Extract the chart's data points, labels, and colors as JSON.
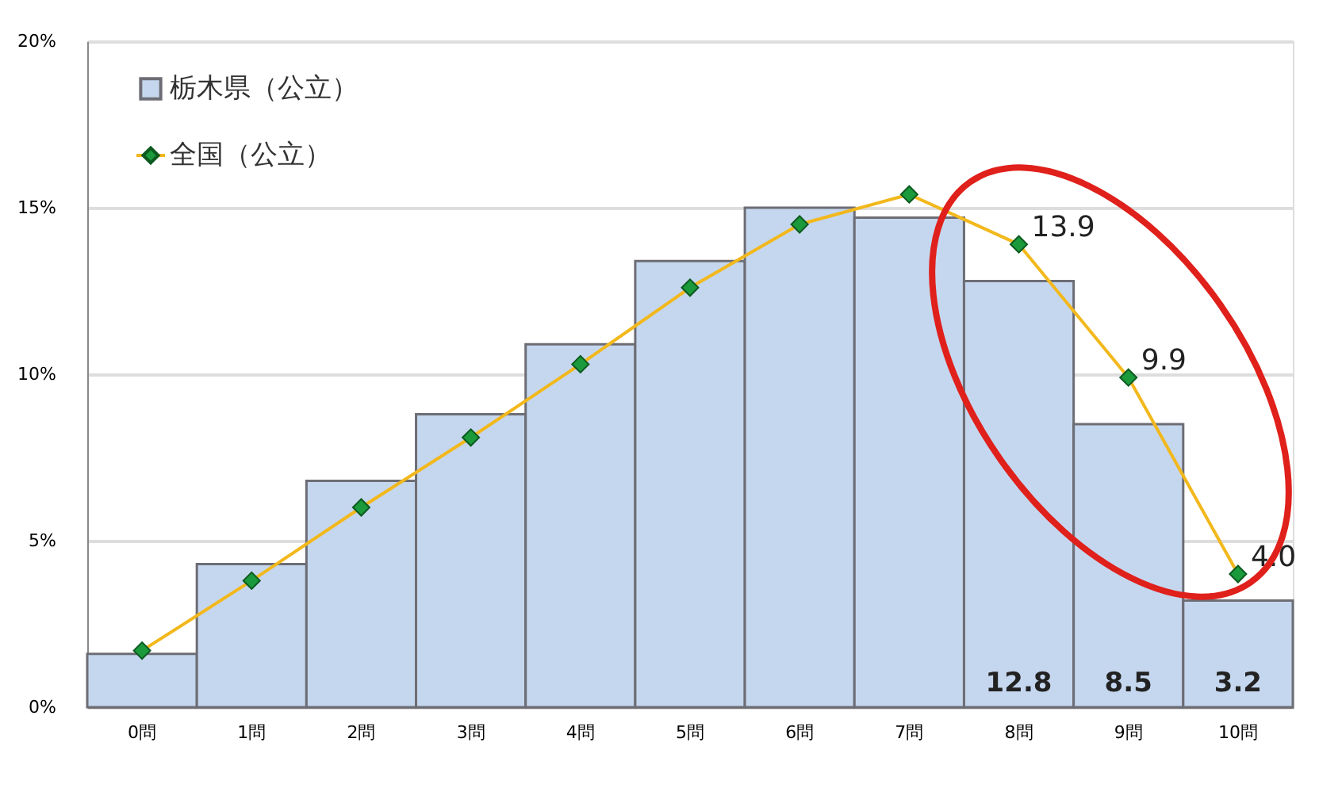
{
  "chart_data": {
    "type": "bar",
    "categories": [
      "0問",
      "1問",
      "2問",
      "3問",
      "4問",
      "5問",
      "6問",
      "7問",
      "8問",
      "9問",
      "10問"
    ],
    "series": [
      {
        "name": "栃木県（公立）",
        "color": "#c5d7ee",
        "values": [
          1.6,
          4.3,
          6.8,
          8.8,
          10.9,
          13.4,
          15.0,
          14.7,
          12.8,
          8.5,
          3.2
        ],
        "value_labels": [
          null,
          null,
          null,
          null,
          null,
          null,
          null,
          null,
          "12.8",
          "8.5",
          "3.2"
        ]
      },
      {
        "name": "全国（公立）",
        "type": "line",
        "color": "#f2b81c",
        "marker": "diamond",
        "values": [
          1.7,
          3.8,
          6.0,
          8.1,
          10.3,
          12.6,
          14.5,
          15.4,
          13.9,
          9.9,
          4.0
        ],
        "value_labels": [
          null,
          null,
          null,
          null,
          null,
          null,
          null,
          null,
          "13.9",
          "9.9",
          "4.0"
        ]
      }
    ],
    "ylim": [
      0,
      20
    ],
    "yticks": [
      {
        "value": 0,
        "label": "0%"
      },
      {
        "value": 5,
        "label": "5%"
      },
      {
        "value": 10,
        "label": "10%"
      },
      {
        "value": 15,
        "label": "15%"
      },
      {
        "value": 20,
        "label": "20%"
      }
    ],
    "grid": "y",
    "legend": "top left"
  }
}
